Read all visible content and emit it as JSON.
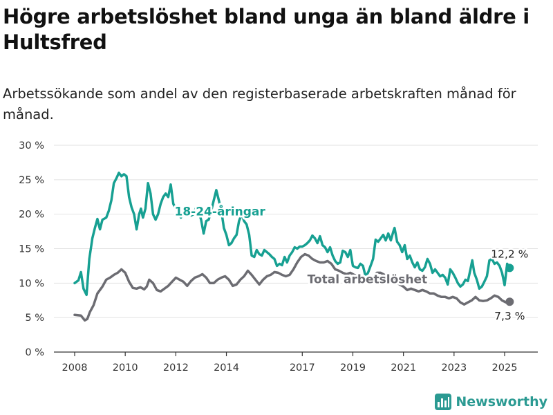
{
  "title": "Högre arbetslöshet bland unga än bland äldre i Hultsfred",
  "subtitle": "Arbetssökande som andel av den registerbaserade arbetskraften månad för månad.",
  "brand": "Newsworthy",
  "colors": {
    "youth": "#17a092",
    "total": "#6c6c72",
    "grid": "#e2e2e2",
    "axis": "#333333",
    "brand": "#2b9a92"
  },
  "chart_data": {
    "type": "line",
    "xlim": [
      2007.6,
      2026.0
    ],
    "ylim": [
      0,
      30
    ],
    "x_ticks": [
      {
        "value": 2008,
        "label": "2008"
      },
      {
        "value": 2010,
        "label": "2010"
      },
      {
        "value": 2012,
        "label": "2012"
      },
      {
        "value": 2014,
        "label": "2014"
      },
      {
        "value": 2017,
        "label": "2017"
      },
      {
        "value": 2019,
        "label": "2019"
      },
      {
        "value": 2021,
        "label": "2021"
      },
      {
        "value": 2023,
        "label": "2023"
      },
      {
        "value": 2025,
        "label": "2025"
      }
    ],
    "y_ticks": [
      {
        "value": 0,
        "label": "0 %"
      },
      {
        "value": 5,
        "label": "5 %"
      },
      {
        "value": 10,
        "label": "10 %"
      },
      {
        "value": 15,
        "label": "15 %"
      },
      {
        "value": 20,
        "label": "20 %"
      },
      {
        "value": 25,
        "label": "25 %"
      },
      {
        "value": 30,
        "label": "30 %"
      }
    ],
    "grid": true,
    "series": [
      {
        "key": "youth",
        "name": "18-24-åringar",
        "end_label": "12,2 %",
        "points": [
          [
            2008.0,
            10.0
          ],
          [
            2008.15,
            10.4
          ],
          [
            2008.25,
            11.6
          ],
          [
            2008.35,
            9.2
          ],
          [
            2008.47,
            8.3
          ],
          [
            2008.58,
            13.5
          ],
          [
            2008.7,
            16.5
          ],
          [
            2008.8,
            18.0
          ],
          [
            2008.9,
            19.3
          ],
          [
            2009.0,
            17.8
          ],
          [
            2009.1,
            19.2
          ],
          [
            2009.25,
            19.5
          ],
          [
            2009.35,
            20.5
          ],
          [
            2009.45,
            22.0
          ],
          [
            2009.55,
            24.5
          ],
          [
            2009.65,
            25.2
          ],
          [
            2009.75,
            26.0
          ],
          [
            2009.85,
            25.5
          ],
          [
            2009.95,
            25.8
          ],
          [
            2010.05,
            25.5
          ],
          [
            2010.15,
            22.5
          ],
          [
            2010.25,
            21.0
          ],
          [
            2010.35,
            20.0
          ],
          [
            2010.45,
            17.8
          ],
          [
            2010.55,
            20.0
          ],
          [
            2010.62,
            20.8
          ],
          [
            2010.7,
            19.5
          ],
          [
            2010.8,
            20.8
          ],
          [
            2010.9,
            24.5
          ],
          [
            2011.0,
            23.0
          ],
          [
            2011.1,
            20.0
          ],
          [
            2011.2,
            19.2
          ],
          [
            2011.3,
            20.0
          ],
          [
            2011.4,
            21.5
          ],
          [
            2011.5,
            22.5
          ],
          [
            2011.6,
            23.0
          ],
          [
            2011.7,
            22.5
          ],
          [
            2011.8,
            24.3
          ],
          [
            2011.9,
            21.5
          ],
          [
            2012.0,
            20.8
          ],
          [
            2012.1,
            20.2
          ],
          [
            2012.2,
            19.5
          ],
          [
            2012.3,
            20.5
          ],
          [
            2012.4,
            19.8
          ],
          [
            2012.5,
            20.2
          ],
          [
            2012.6,
            19.8
          ],
          [
            2012.7,
            20.0
          ],
          [
            2012.8,
            21.0
          ],
          [
            2012.9,
            20.5
          ],
          [
            2013.0,
            19.2
          ],
          [
            2013.1,
            17.2
          ],
          [
            2013.2,
            19.0
          ],
          [
            2013.3,
            19.2
          ],
          [
            2013.4,
            20.5
          ],
          [
            2013.5,
            22.0
          ],
          [
            2013.6,
            23.5
          ],
          [
            2013.7,
            22.0
          ],
          [
            2013.8,
            20.5
          ],
          [
            2013.9,
            18.0
          ],
          [
            2014.0,
            17.0
          ],
          [
            2014.1,
            15.5
          ],
          [
            2014.2,
            15.8
          ],
          [
            2014.3,
            16.5
          ],
          [
            2014.4,
            17.0
          ],
          [
            2014.5,
            19.0
          ],
          [
            2014.6,
            20.0
          ],
          [
            2014.7,
            19.0
          ],
          [
            2014.8,
            18.5
          ],
          [
            2014.9,
            17.0
          ],
          [
            2015.0,
            14.0
          ],
          [
            2015.1,
            13.8
          ],
          [
            2015.2,
            14.8
          ],
          [
            2015.3,
            14.2
          ],
          [
            2015.4,
            14.0
          ],
          [
            2015.5,
            14.8
          ],
          [
            2015.6,
            14.5
          ],
          [
            2015.7,
            14.2
          ],
          [
            2015.8,
            13.8
          ],
          [
            2015.9,
            13.5
          ],
          [
            2016.0,
            12.5
          ],
          [
            2016.1,
            12.8
          ],
          [
            2016.2,
            12.6
          ],
          [
            2016.3,
            13.8
          ],
          [
            2016.4,
            13.0
          ],
          [
            2016.5,
            14.0
          ],
          [
            2016.6,
            14.5
          ],
          [
            2016.7,
            15.2
          ],
          [
            2016.8,
            15.0
          ],
          [
            2016.9,
            15.3
          ],
          [
            2017.0,
            15.3
          ],
          [
            2017.1,
            15.5
          ],
          [
            2017.2,
            15.8
          ],
          [
            2017.3,
            16.2
          ],
          [
            2017.4,
            16.9
          ],
          [
            2017.5,
            16.5
          ],
          [
            2017.6,
            15.8
          ],
          [
            2017.7,
            16.8
          ],
          [
            2017.8,
            15.5
          ],
          [
            2017.9,
            15.2
          ],
          [
            2018.0,
            14.5
          ],
          [
            2018.1,
            15.2
          ],
          [
            2018.2,
            14.0
          ],
          [
            2018.3,
            13.2
          ],
          [
            2018.4,
            12.8
          ],
          [
            2018.5,
            13.0
          ],
          [
            2018.6,
            14.7
          ],
          [
            2018.7,
            14.5
          ],
          [
            2018.8,
            13.8
          ],
          [
            2018.9,
            14.8
          ],
          [
            2019.0,
            12.5
          ],
          [
            2019.1,
            12.3
          ],
          [
            2019.2,
            12.2
          ],
          [
            2019.3,
            12.8
          ],
          [
            2019.4,
            12.5
          ],
          [
            2019.5,
            11.0
          ],
          [
            2019.6,
            11.5
          ],
          [
            2019.7,
            12.5
          ],
          [
            2019.8,
            13.5
          ],
          [
            2019.9,
            16.3
          ],
          [
            2020.0,
            16.0
          ],
          [
            2020.1,
            16.5
          ],
          [
            2020.2,
            17.0
          ],
          [
            2020.3,
            16.2
          ],
          [
            2020.4,
            17.2
          ],
          [
            2020.5,
            16.2
          ],
          [
            2020.6,
            17.5
          ],
          [
            2020.65,
            18.0
          ],
          [
            2020.75,
            16.0
          ],
          [
            2020.85,
            15.5
          ],
          [
            2020.95,
            14.5
          ],
          [
            2021.05,
            15.5
          ],
          [
            2021.15,
            13.5
          ],
          [
            2021.25,
            14.0
          ],
          [
            2021.35,
            13.0
          ],
          [
            2021.45,
            12.3
          ],
          [
            2021.55,
            13.0
          ],
          [
            2021.65,
            12.0
          ],
          [
            2021.75,
            11.8
          ],
          [
            2021.85,
            12.3
          ],
          [
            2021.95,
            13.5
          ],
          [
            2022.05,
            12.8
          ],
          [
            2022.15,
            11.5
          ],
          [
            2022.25,
            12.0
          ],
          [
            2022.35,
            11.5
          ],
          [
            2022.45,
            11.0
          ],
          [
            2022.55,
            11.2
          ],
          [
            2022.65,
            10.8
          ],
          [
            2022.75,
            9.8
          ],
          [
            2022.85,
            12.0
          ],
          [
            2022.95,
            11.5
          ],
          [
            2023.05,
            10.8
          ],
          [
            2023.15,
            10.0
          ],
          [
            2023.25,
            9.5
          ],
          [
            2023.35,
            9.8
          ],
          [
            2023.45,
            10.5
          ],
          [
            2023.55,
            10.3
          ],
          [
            2023.65,
            12.0
          ],
          [
            2023.72,
            13.3
          ],
          [
            2023.8,
            11.5
          ],
          [
            2023.9,
            10.5
          ],
          [
            2024.0,
            9.2
          ],
          [
            2024.1,
            9.5
          ],
          [
            2024.2,
            10.2
          ],
          [
            2024.3,
            11.0
          ],
          [
            2024.4,
            13.3
          ],
          [
            2024.5,
            13.5
          ],
          [
            2024.6,
            12.8
          ],
          [
            2024.7,
            13.0
          ],
          [
            2024.8,
            12.5
          ],
          [
            2024.9,
            11.5
          ],
          [
            2025.0,
            9.7
          ],
          [
            2025.1,
            12.8
          ],
          [
            2025.2,
            12.2
          ]
        ]
      },
      {
        "key": "total",
        "name": "Total arbetslöshet",
        "end_label": "7,3 %",
        "points": [
          [
            2008.0,
            5.4
          ],
          [
            2008.25,
            5.3
          ],
          [
            2008.4,
            4.6
          ],
          [
            2008.5,
            4.8
          ],
          [
            2008.6,
            5.8
          ],
          [
            2008.75,
            6.8
          ],
          [
            2008.9,
            8.5
          ],
          [
            2009.1,
            9.5
          ],
          [
            2009.25,
            10.5
          ],
          [
            2009.4,
            10.8
          ],
          [
            2009.55,
            11.2
          ],
          [
            2009.7,
            11.5
          ],
          [
            2009.85,
            12.0
          ],
          [
            2010.0,
            11.5
          ],
          [
            2010.15,
            10.2
          ],
          [
            2010.3,
            9.3
          ],
          [
            2010.45,
            9.2
          ],
          [
            2010.6,
            9.4
          ],
          [
            2010.75,
            9.1
          ],
          [
            2010.85,
            9.5
          ],
          [
            2010.95,
            10.5
          ],
          [
            2011.1,
            10.0
          ],
          [
            2011.25,
            9.0
          ],
          [
            2011.4,
            8.8
          ],
          [
            2011.55,
            9.2
          ],
          [
            2011.7,
            9.6
          ],
          [
            2011.85,
            10.2
          ],
          [
            2012.0,
            10.8
          ],
          [
            2012.15,
            10.5
          ],
          [
            2012.3,
            10.2
          ],
          [
            2012.45,
            9.6
          ],
          [
            2012.6,
            10.3
          ],
          [
            2012.75,
            10.8
          ],
          [
            2012.9,
            11.0
          ],
          [
            2013.05,
            11.3
          ],
          [
            2013.2,
            10.8
          ],
          [
            2013.35,
            10.0
          ],
          [
            2013.5,
            10.0
          ],
          [
            2013.65,
            10.5
          ],
          [
            2013.8,
            10.8
          ],
          [
            2013.95,
            11.0
          ],
          [
            2014.1,
            10.5
          ],
          [
            2014.25,
            9.6
          ],
          [
            2014.4,
            9.8
          ],
          [
            2014.55,
            10.5
          ],
          [
            2014.7,
            11.0
          ],
          [
            2014.85,
            11.8
          ],
          [
            2015.0,
            11.2
          ],
          [
            2015.15,
            10.5
          ],
          [
            2015.3,
            9.8
          ],
          [
            2015.45,
            10.5
          ],
          [
            2015.6,
            11.0
          ],
          [
            2015.75,
            11.2
          ],
          [
            2015.9,
            11.6
          ],
          [
            2016.05,
            11.5
          ],
          [
            2016.2,
            11.2
          ],
          [
            2016.35,
            11.0
          ],
          [
            2016.5,
            11.2
          ],
          [
            2016.65,
            12.0
          ],
          [
            2016.8,
            13.0
          ],
          [
            2016.95,
            13.8
          ],
          [
            2017.1,
            14.2
          ],
          [
            2017.25,
            14.0
          ],
          [
            2017.4,
            13.5
          ],
          [
            2017.55,
            13.2
          ],
          [
            2017.7,
            13.0
          ],
          [
            2017.85,
            13.0
          ],
          [
            2018.0,
            13.2
          ],
          [
            2018.15,
            12.8
          ],
          [
            2018.3,
            12.0
          ],
          [
            2018.45,
            11.8
          ],
          [
            2018.6,
            11.5
          ],
          [
            2018.75,
            11.3
          ],
          [
            2018.9,
            11.5
          ],
          [
            2019.05,
            11.2
          ],
          [
            2019.2,
            11.0
          ],
          [
            2019.35,
            11.0
          ],
          [
            2019.5,
            10.8
          ],
          [
            2019.65,
            10.8
          ],
          [
            2019.8,
            11.0
          ],
          [
            2019.95,
            11.5
          ],
          [
            2020.1,
            11.5
          ],
          [
            2020.25,
            11.2
          ],
          [
            2020.4,
            10.8
          ],
          [
            2020.55,
            10.5
          ],
          [
            2020.7,
            10.2
          ],
          [
            2020.85,
            9.8
          ],
          [
            2021.0,
            9.5
          ],
          [
            2021.15,
            9.0
          ],
          [
            2021.3,
            9.2
          ],
          [
            2021.45,
            9.0
          ],
          [
            2021.6,
            8.8
          ],
          [
            2021.75,
            9.0
          ],
          [
            2021.9,
            8.8
          ],
          [
            2022.05,
            8.5
          ],
          [
            2022.2,
            8.5
          ],
          [
            2022.35,
            8.2
          ],
          [
            2022.5,
            8.0
          ],
          [
            2022.65,
            8.0
          ],
          [
            2022.8,
            7.8
          ],
          [
            2022.95,
            8.0
          ],
          [
            2023.1,
            7.8
          ],
          [
            2023.25,
            7.2
          ],
          [
            2023.4,
            6.9
          ],
          [
            2023.55,
            7.2
          ],
          [
            2023.7,
            7.5
          ],
          [
            2023.85,
            8.0
          ],
          [
            2024.0,
            7.5
          ],
          [
            2024.15,
            7.4
          ],
          [
            2024.3,
            7.5
          ],
          [
            2024.45,
            7.8
          ],
          [
            2024.6,
            8.2
          ],
          [
            2024.75,
            8.0
          ],
          [
            2024.9,
            7.5
          ],
          [
            2025.05,
            7.2
          ],
          [
            2025.2,
            7.3
          ]
        ]
      }
    ]
  }
}
